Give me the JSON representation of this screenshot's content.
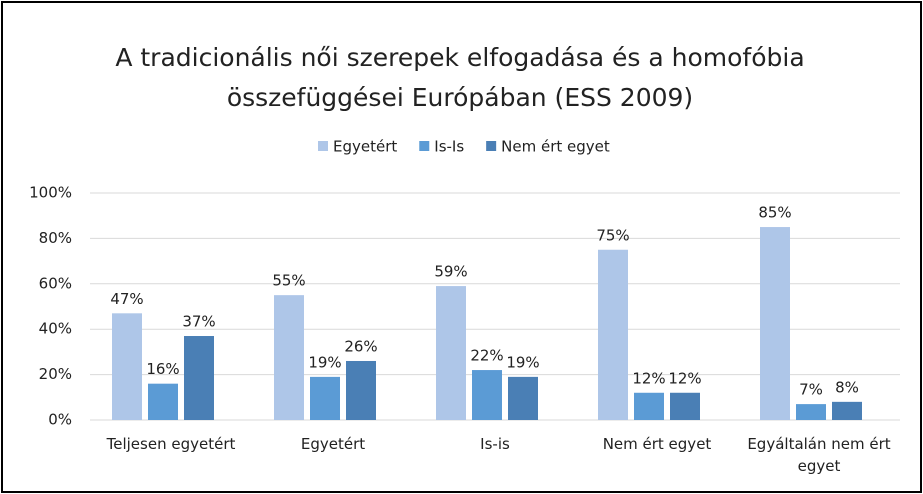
{
  "chart_data": {
    "type": "bar",
    "title": "A tradicionális női szerepek elfogadása és a homofóbia összefüggései Európában (ESS 2009)",
    "categories": [
      "Teljesen egyetért",
      "Egyetért",
      "Is-is",
      "Nem ért egyet",
      "Egyáltalán nem ért egyet"
    ],
    "series": [
      {
        "name": "Egyetért",
        "color": "#aec6e8",
        "values": [
          47,
          55,
          59,
          75,
          85
        ],
        "value_labels": [
          "47%",
          "55%",
          "59%",
          "75%",
          "85%"
        ]
      },
      {
        "name": "Is-Is",
        "color": "#5b9bd5",
        "values": [
          16,
          19,
          22,
          12,
          7
        ],
        "value_labels": [
          "16%",
          "19%",
          "22%",
          "12%",
          "7%"
        ]
      },
      {
        "name": "Nem ért egyet",
        "color": "#4a7fb5",
        "values": [
          37,
          26,
          19,
          12,
          8
        ],
        "value_labels": [
          "37%",
          "26%",
          "19%",
          "12%",
          "8%"
        ]
      }
    ],
    "ylim": [
      0,
      100
    ],
    "yticks": [
      {
        "value": 0,
        "label": "0%"
      },
      {
        "value": 20,
        "label": "20%"
      },
      {
        "value": 40,
        "label": "40%"
      },
      {
        "value": 60,
        "label": "60%"
      },
      {
        "value": 80,
        "label": "80%"
      },
      {
        "value": 100,
        "label": "100%"
      }
    ],
    "grid": true,
    "legend": "top"
  }
}
